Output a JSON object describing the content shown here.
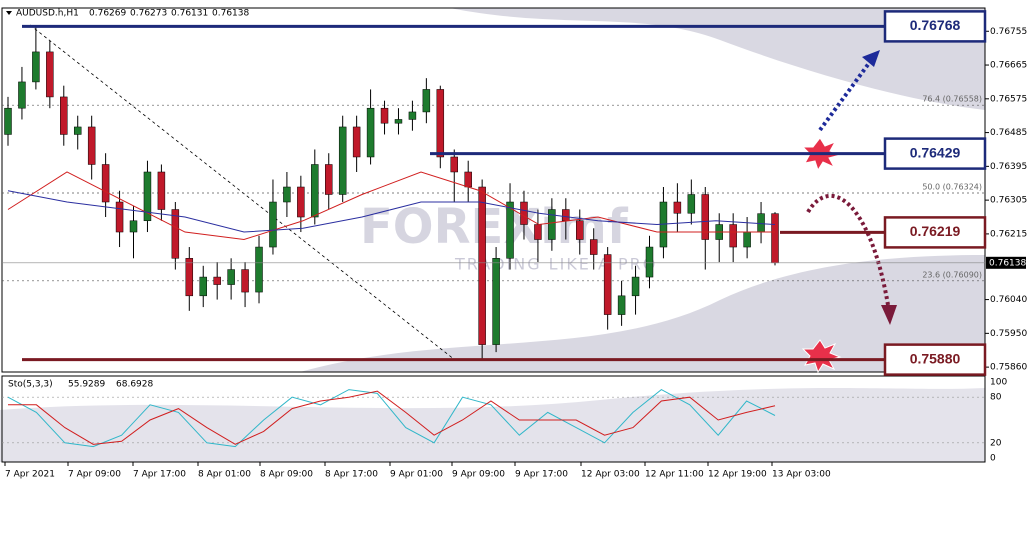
{
  "chart_data": {
    "type": "candlestick",
    "symbol": "AUDUSD.h,H1",
    "ylim": [
      0.75847,
      0.76817
    ],
    "yticks": [
      0.76755,
      0.76665,
      0.76575,
      0.76485,
      0.76395,
      0.76305,
      0.76215,
      {
        "value": 0.7604,
        "label": "0.76040"
      },
      {
        "value": 0.7595,
        "label": "0.75950"
      },
      {
        "value": 0.7586,
        "label": "0.75860"
      }
    ],
    "candles": [
      [
        0.7648,
        0.7658,
        0.7645,
        0.7655
      ],
      [
        0.7655,
        0.7666,
        0.7652,
        0.7662
      ],
      [
        0.7662,
        0.7677,
        0.766,
        0.767
      ],
      [
        0.767,
        0.7673,
        0.7655,
        0.7658
      ],
      [
        0.7658,
        0.7661,
        0.7645,
        0.7648
      ],
      [
        0.7648,
        0.7653,
        0.7644,
        0.765
      ],
      [
        0.765,
        0.7653,
        0.7636,
        0.764
      ],
      [
        0.764,
        0.7643,
        0.7626,
        0.763
      ],
      [
        0.763,
        0.7633,
        0.7618,
        0.7622
      ],
      [
        0.7622,
        0.7629,
        0.7615,
        0.7625
      ],
      [
        0.7625,
        0.7641,
        0.7622,
        0.7638
      ],
      [
        0.7638,
        0.764,
        0.7625,
        0.7628
      ],
      [
        0.7628,
        0.763,
        0.7612,
        0.7615
      ],
      [
        0.7615,
        0.7618,
        0.7601,
        0.7605
      ],
      [
        0.7605,
        0.7613,
        0.7602,
        0.761
      ],
      [
        0.761,
        0.7614,
        0.7604,
        0.7608
      ],
      [
        0.7608,
        0.7615,
        0.7604,
        0.7612
      ],
      [
        0.7612,
        0.7614,
        0.7602,
        0.7606
      ],
      [
        0.7606,
        0.7621,
        0.7603,
        0.7618
      ],
      [
        0.7618,
        0.7636,
        0.7616,
        0.763
      ],
      [
        0.763,
        0.7638,
        0.7626,
        0.7634
      ],
      [
        0.7634,
        0.7637,
        0.7622,
        0.7626
      ],
      [
        0.7626,
        0.7644,
        0.7624,
        0.764
      ],
      [
        0.764,
        0.7643,
        0.7628,
        0.7632
      ],
      [
        0.7632,
        0.7653,
        0.763,
        0.765
      ],
      [
        0.765,
        0.7653,
        0.7638,
        0.7642
      ],
      [
        0.7642,
        0.766,
        0.764,
        0.7655
      ],
      [
        0.7655,
        0.7657,
        0.7648,
        0.7651
      ],
      [
        0.7651,
        0.7655,
        0.7648,
        0.7652
      ],
      [
        0.7652,
        0.7657,
        0.7649,
        0.7654
      ],
      [
        0.7654,
        0.7663,
        0.7651,
        0.766
      ],
      [
        0.766,
        0.7661,
        0.7639,
        0.7642
      ],
      [
        0.7642,
        0.7644,
        0.763,
        0.7638
      ],
      [
        0.7638,
        0.7641,
        0.763,
        0.7634
      ],
      [
        0.7634,
        0.7636,
        0.7588,
        0.7592
      ],
      [
        0.7592,
        0.7618,
        0.759,
        0.7615
      ],
      [
        0.7615,
        0.7635,
        0.7612,
        0.763
      ],
      [
        0.763,
        0.7633,
        0.762,
        0.7624
      ],
      [
        0.7624,
        0.7628,
        0.7614,
        0.762
      ],
      [
        0.762,
        0.7631,
        0.7617,
        0.7628
      ],
      [
        0.7628,
        0.7631,
        0.762,
        0.7625
      ],
      [
        0.7625,
        0.7628,
        0.7616,
        0.762
      ],
      [
        0.762,
        0.7623,
        0.7612,
        0.7616
      ],
      [
        0.7616,
        0.7618,
        0.7596,
        0.76
      ],
      [
        0.76,
        0.7609,
        0.7597,
        0.7605
      ],
      [
        0.7605,
        0.7613,
        0.76,
        0.761
      ],
      [
        0.761,
        0.7621,
        0.7607,
        0.7618
      ],
      [
        0.7618,
        0.7634,
        0.7615,
        0.763
      ],
      [
        0.763,
        0.7635,
        0.7622,
        0.7627
      ],
      [
        0.7627,
        0.7636,
        0.7624,
        0.7632
      ],
      [
        0.7632,
        0.7634,
        0.7612,
        0.762
      ],
      [
        0.762,
        0.7627,
        0.7614,
        0.7624
      ],
      [
        0.7624,
        0.7627,
        0.7614,
        0.7618
      ],
      [
        0.7618,
        0.7626,
        0.7615,
        0.7622
      ],
      [
        0.7622,
        0.763,
        0.7619,
        0.76269
      ],
      [
        0.76269,
        0.76273,
        0.76131,
        0.76138
      ]
    ],
    "up_color": "#1e7b2e",
    "down_color": "#c0192a",
    "moving_averages": [
      {
        "color": "#d11f1f",
        "values": [
          0.7628,
          0.7638,
          0.763,
          0.7622,
          0.762,
          0.7625,
          0.7632,
          0.7638,
          0.7633,
          0.7624,
          0.7626,
          0.7622,
          0.7622,
          0.7622
        ]
      },
      {
        "color": "#2b2fa0",
        "values": [
          0.7633,
          0.763,
          0.7628,
          0.7626,
          0.7622,
          0.7623,
          0.7626,
          0.763,
          0.763,
          0.7627,
          0.7625,
          0.7624,
          0.7625,
          0.7624
        ]
      }
    ],
    "levels": [
      {
        "value": 0.76768,
        "label": "0.76768",
        "color": "#1d2a7a"
      },
      {
        "value": 0.76429,
        "label": "0.76429",
        "color": "#1d2a7a"
      },
      {
        "value": 0.76219,
        "label": "0.76219",
        "color": "#7a1a22"
      },
      {
        "value": 0.7588,
        "label": "0.75880",
        "color": "#7a1a22"
      }
    ],
    "fib_levels": [
      {
        "value": 0.76558,
        "label": "76.4 (0.76558)"
      },
      {
        "value": 0.76324,
        "label": "50.0 (0.76324)"
      },
      {
        "value": 0.7609,
        "label": "23.6 (0.76090)"
      }
    ],
    "x_labels": [
      "7 Apr 2021",
      "7 Apr 09:00",
      "7 Apr 17:00",
      "8 Apr 01:00",
      "8 Apr 09:00",
      "8 Apr 17:00",
      "9 Apr 01:00",
      "9 Apr 09:00",
      "9 Apr 17:00",
      "12 Apr 03:00",
      "12 Apr 11:00",
      "12 Apr 19:00",
      "13 Apr 03:00"
    ],
    "watermark": "FOREXimf",
    "watermark_tagline": "TRADING LIKE A PRO",
    "oscillator": {
      "name": "Sto(5,3,3)",
      "ylim": [
        0,
        100
      ],
      "yticks": [
        100,
        80,
        20,
        0
      ],
      "series": [
        {
          "color": "#31b7c9",
          "values": [
            80,
            60,
            20,
            15,
            30,
            70,
            60,
            20,
            15,
            50,
            80,
            70,
            90,
            85,
            40,
            20,
            80,
            70,
            30,
            60,
            40,
            20,
            60,
            90,
            70,
            30,
            75,
            55.9289
          ]
        },
        {
          "color": "#d11f1f",
          "values": [
            70,
            70,
            40,
            18,
            22,
            50,
            65,
            40,
            18,
            35,
            65,
            75,
            80,
            88,
            60,
            30,
            50,
            75,
            50,
            50,
            50,
            30,
            40,
            75,
            80,
            50,
            60,
            68.6928
          ]
        }
      ]
    }
  }
}
